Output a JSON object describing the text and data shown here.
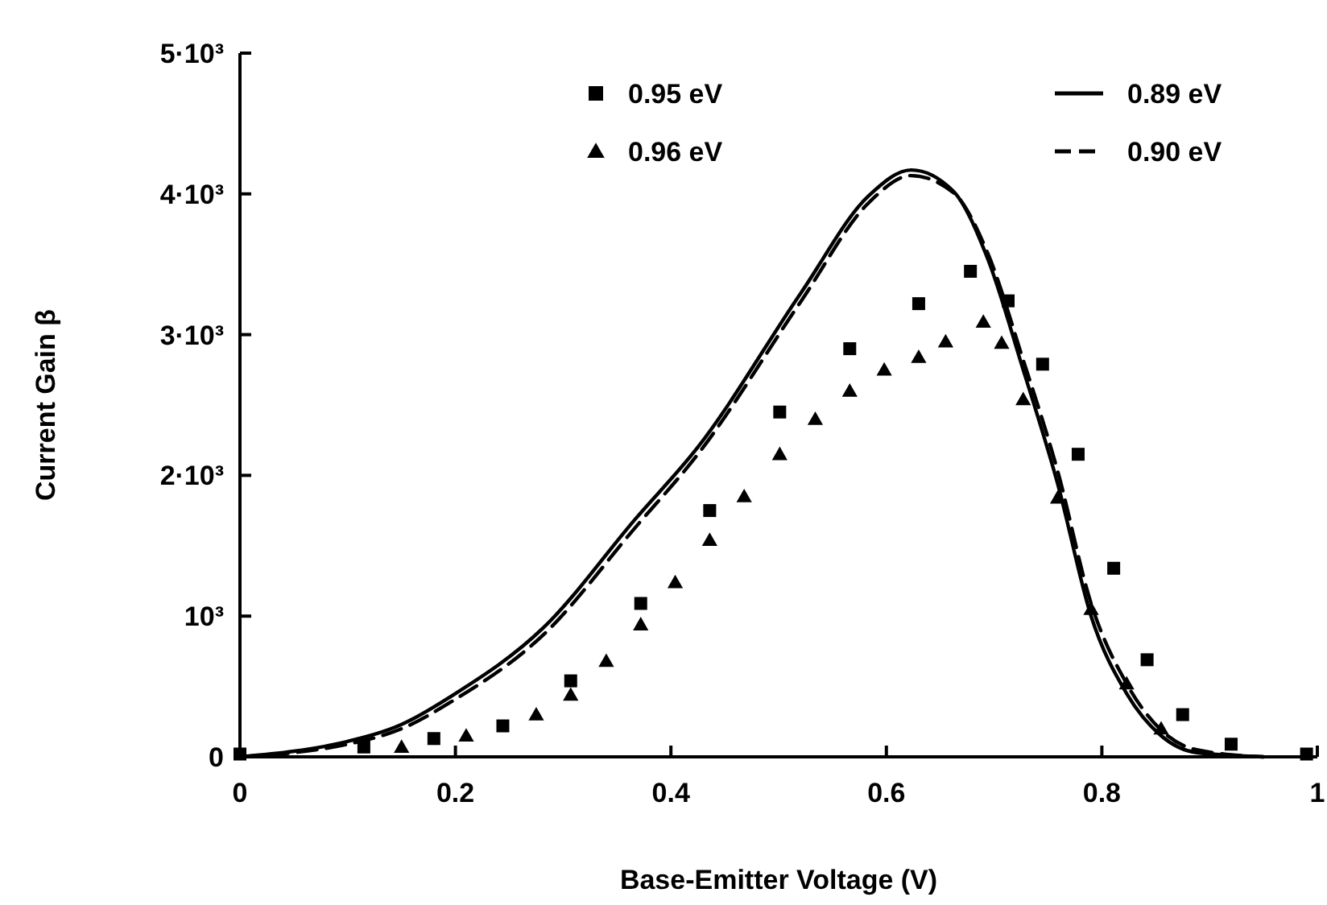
{
  "chart_data": {
    "type": "line",
    "xlabel": "Base-Emitter Voltage (V)",
    "ylabel": "Current Gain β",
    "xlim": [
      0,
      1
    ],
    "xticks": [
      0,
      0.2,
      0.4,
      0.6,
      0.8,
      1
    ],
    "ylim": [
      0,
      5000
    ],
    "yticks": [
      0,
      {
        "value": 1000,
        "label": "10³"
      },
      {
        "value": 2000,
        "label": "2·10³"
      },
      {
        "value": 3000,
        "label": "3·10³"
      },
      {
        "value": 4000,
        "label": "4·10³"
      },
      {
        "value": 5000,
        "label": "5·10³"
      }
    ],
    "grid": false,
    "legend": "top",
    "series": [
      {
        "name": "0.95 eV",
        "type": "scatter",
        "marker": "square",
        "color": "#000000",
        "x": [
          0,
          0.115,
          0.18,
          0.244,
          0.307,
          0.372,
          0.436,
          0.501,
          0.566,
          0.63,
          0.678,
          0.713,
          0.745,
          0.778,
          0.811,
          0.842,
          0.875,
          0.92,
          0.99
        ],
        "values": [
          20,
          70,
          130,
          220,
          540,
          1090,
          1750,
          2450,
          2900,
          3220,
          3450,
          3240,
          2790,
          2150,
          1340,
          690,
          300,
          90,
          20
        ]
      },
      {
        "name": "0.96 eV",
        "type": "scatter",
        "marker": "triangle",
        "color": "#000000",
        "x": [
          0.15,
          0.21,
          0.275,
          0.307,
          0.34,
          0.372,
          0.404,
          0.436,
          0.468,
          0.501,
          0.534,
          0.566,
          0.598,
          0.63,
          0.655,
          0.69,
          0.707,
          0.727,
          0.759,
          0.79,
          0.823,
          0.855
        ],
        "values": [
          70,
          150,
          300,
          440,
          680,
          940,
          1240,
          1540,
          1850,
          2150,
          2400,
          2600,
          2750,
          2840,
          2950,
          3090,
          2940,
          2540,
          1840,
          1050,
          520,
          200
        ]
      },
      {
        "name": "0.89 eV",
        "line_style": "solid",
        "marker": "none",
        "color": "#000000",
        "x": [
          0,
          0.05,
          0.1,
          0.15,
          0.198,
          0.282,
          0.367,
          0.425,
          0.521,
          0.584,
          0.623,
          0.662,
          0.694,
          0.727,
          0.759,
          0.79,
          0.823,
          0.855,
          0.888,
          0.95
        ],
        "values": [
          0,
          40,
          110,
          230,
          440,
          920,
          1690,
          2200,
          3300,
          3990,
          4170,
          4020,
          3540,
          2750,
          1940,
          1000,
          450,
          150,
          30,
          0
        ]
      },
      {
        "name": "0.90 eV",
        "line_style": "dashed",
        "marker": "none",
        "color": "#000000",
        "x": [
          0,
          0.05,
          0.1,
          0.15,
          0.198,
          0.282,
          0.367,
          0.425,
          0.521,
          0.584,
          0.623,
          0.662,
          0.694,
          0.727,
          0.759,
          0.79,
          0.823,
          0.855,
          0.888,
          0.95
        ],
        "values": [
          0,
          30,
          90,
          200,
          400,
          870,
          1630,
          2150,
          3240,
          3940,
          4130,
          4010,
          3580,
          2820,
          2030,
          1090,
          520,
          190,
          50,
          0
        ]
      }
    ]
  }
}
